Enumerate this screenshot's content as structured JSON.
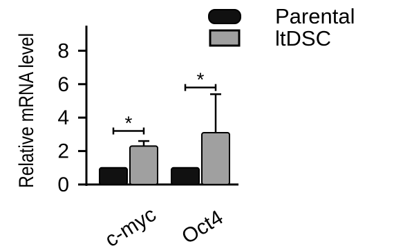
{
  "chart_data": {
    "type": "bar",
    "categories": [
      "c-myc",
      "Oct4"
    ],
    "series": [
      {
        "name": "Parental",
        "values": [
          1.0,
          1.0
        ],
        "error": [
          0,
          0
        ],
        "color": "#111111"
      },
      {
        "name": "ltDSC",
        "values": [
          2.3,
          3.1
        ],
        "error": [
          0.3,
          2.3
        ],
        "color": "#a0a0a0"
      }
    ],
    "ylabel": "Relative mRNA level",
    "ylim": [
      0,
      9.5
    ],
    "yticks": [
      "0",
      "2",
      "4",
      "6",
      "8"
    ],
    "significance": [
      {
        "category": "c-myc",
        "label": "*",
        "level": 3.2
      },
      {
        "category": "Oct4",
        "label": "*",
        "level": 5.8
      }
    ],
    "legend_position": "top-right",
    "grid": false
  }
}
